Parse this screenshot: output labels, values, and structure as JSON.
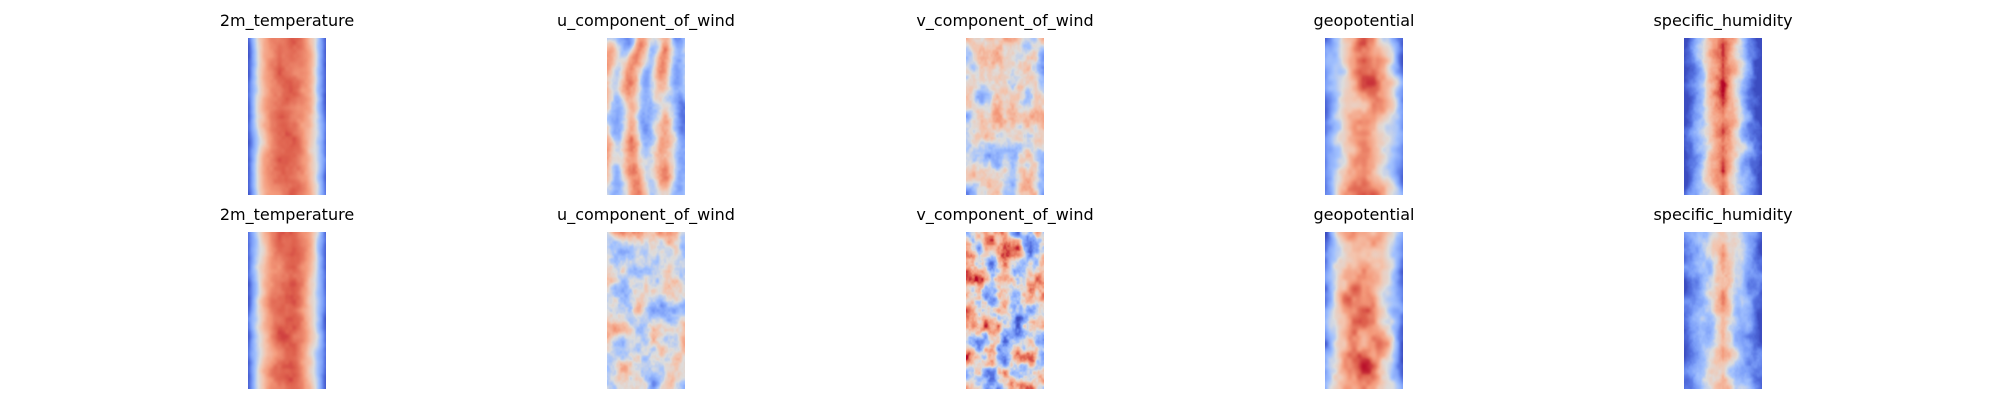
{
  "chart_data": {
    "type": "heatmap",
    "colormap": "coolwarm",
    "axes_visible": false,
    "colorbar": false,
    "grid": false,
    "rows": 2,
    "columns": 5,
    "panels": [
      {
        "title": "2m_temperature",
        "pattern": "temperature",
        "seed": 11
      },
      {
        "title": "u_component_of_wind",
        "pattern": "wind",
        "seed": 23
      },
      {
        "title": "v_component_of_wind",
        "pattern": "wind_pale",
        "seed": 37
      },
      {
        "title": "geopotential",
        "pattern": "geopotential",
        "seed": 41
      },
      {
        "title": "specific_humidity",
        "pattern": "humidity",
        "seed": 53
      },
      {
        "title": "2m_temperature",
        "pattern": "temperature",
        "seed": 67
      },
      {
        "title": "u_component_of_wind",
        "pattern": "wind_pale",
        "seed": 71
      },
      {
        "title": "v_component_of_wind",
        "pattern": "wind_strong",
        "seed": 83
      },
      {
        "title": "geopotential",
        "pattern": "geopotential",
        "seed": 97
      },
      {
        "title": "specific_humidity",
        "pattern": "humidity_soft",
        "seed": 101
      }
    ]
  }
}
